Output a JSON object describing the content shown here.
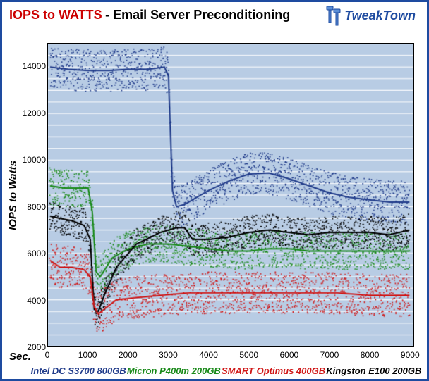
{
  "title_highlight": "IOPS to WATTS",
  "title_rest": " - Email Server Preconditioning",
  "logo_text": "TweakTown",
  "ylabel": "IOPS to Watts",
  "xlabel": "Sec.",
  "chart": {
    "type": "scatter",
    "background_color": "#b8cce4",
    "grid_color": "#ffffff",
    "border_color": "#000000",
    "xlim": [
      0,
      9100
    ],
    "ylim": [
      2000,
      15000
    ],
    "xtick_step": 1000,
    "xticks": [
      0,
      1000,
      2000,
      3000,
      4000,
      5000,
      6000,
      7000,
      8000,
      9000
    ],
    "yticks": [
      2000,
      4000,
      6000,
      8000,
      10000,
      12000,
      14000
    ],
    "minor_grid_step_y": 500,
    "marker_size": 1.6,
    "trend_line_width": 2.0,
    "title_fontsize": 18,
    "label_fontsize": 15,
    "tick_fontsize": 12,
    "legend_fontsize": 13
  },
  "series": [
    {
      "name": "Intel DC S3700 800GB",
      "color": "#203b8a",
      "scatter_noise": 900,
      "trend": [
        [
          50,
          14000
        ],
        [
          500,
          13900
        ],
        [
          1000,
          13850
        ],
        [
          1500,
          13850
        ],
        [
          2000,
          13900
        ],
        [
          2500,
          13900
        ],
        [
          2900,
          14000
        ],
        [
          3000,
          13600
        ],
        [
          3100,
          8700
        ],
        [
          3200,
          8000
        ],
        [
          3400,
          8100
        ],
        [
          4000,
          8700
        ],
        [
          4500,
          9100
        ],
        [
          5000,
          9400
        ],
        [
          5500,
          9450
        ],
        [
          6000,
          9200
        ],
        [
          6500,
          8900
        ],
        [
          7000,
          8600
        ],
        [
          7500,
          8400
        ],
        [
          8000,
          8300
        ],
        [
          8500,
          8200
        ],
        [
          9000,
          8200
        ]
      ]
    },
    {
      "name": "Micron P400m 200GB",
      "color": "#1a8a1a",
      "scatter_noise": 800,
      "trend": [
        [
          50,
          8900
        ],
        [
          400,
          8800
        ],
        [
          800,
          8800
        ],
        [
          1000,
          8800
        ],
        [
          1100,
          7800
        ],
        [
          1200,
          5200
        ],
        [
          1300,
          5000
        ],
        [
          1600,
          5800
        ],
        [
          2000,
          6200
        ],
        [
          2500,
          6400
        ],
        [
          3000,
          6400
        ],
        [
          3500,
          6300
        ],
        [
          4000,
          6200
        ],
        [
          4500,
          6100
        ],
        [
          5000,
          6100
        ],
        [
          5500,
          6200
        ],
        [
          6000,
          6200
        ],
        [
          6500,
          6100
        ],
        [
          7000,
          6100
        ],
        [
          7500,
          6100
        ],
        [
          8000,
          6100
        ],
        [
          8500,
          6100
        ],
        [
          9000,
          6100
        ]
      ]
    },
    {
      "name": "SMART Optimus 400GB",
      "color": "#d01818",
      "scatter_noise": 900,
      "trend": [
        [
          50,
          5700
        ],
        [
          300,
          5400
        ],
        [
          600,
          5400
        ],
        [
          900,
          5300
        ],
        [
          1050,
          5000
        ],
        [
          1150,
          3700
        ],
        [
          1250,
          3400
        ],
        [
          1400,
          3600
        ],
        [
          1700,
          4000
        ],
        [
          2200,
          4100
        ],
        [
          2800,
          4200
        ],
        [
          3500,
          4300
        ],
        [
          4200,
          4300
        ],
        [
          5000,
          4300
        ],
        [
          5800,
          4300
        ],
        [
          6500,
          4300
        ],
        [
          7200,
          4300
        ],
        [
          8000,
          4200
        ],
        [
          8500,
          4200
        ],
        [
          9000,
          4200
        ]
      ]
    },
    {
      "name": "Kingston E100 200GB",
      "color": "#000000",
      "scatter_noise": 700,
      "trend": [
        [
          50,
          7600
        ],
        [
          300,
          7500
        ],
        [
          600,
          7400
        ],
        [
          900,
          7200
        ],
        [
          1050,
          6600
        ],
        [
          1150,
          3600
        ],
        [
          1250,
          3500
        ],
        [
          1400,
          4200
        ],
        [
          1700,
          5400
        ],
        [
          2200,
          6400
        ],
        [
          2800,
          6900
        ],
        [
          3200,
          7100
        ],
        [
          3400,
          7100
        ],
        [
          3600,
          6600
        ],
        [
          4000,
          6600
        ],
        [
          4500,
          6700
        ],
        [
          5000,
          6900
        ],
        [
          5500,
          7000
        ],
        [
          6000,
          6900
        ],
        [
          6500,
          6800
        ],
        [
          7000,
          6900
        ],
        [
          7500,
          6900
        ],
        [
          8000,
          6900
        ],
        [
          8500,
          6800
        ],
        [
          9000,
          7000
        ]
      ]
    }
  ],
  "legend": [
    {
      "label": "Intel DC S3700 800GB",
      "color": "#203b8a"
    },
    {
      "label": "Micron P400m 200GB",
      "color": "#1a8a1a"
    },
    {
      "label": "SMART Optimus 400GB",
      "color": "#d01818"
    },
    {
      "label": "Kingston E100 200GB",
      "color": "#000000"
    }
  ]
}
